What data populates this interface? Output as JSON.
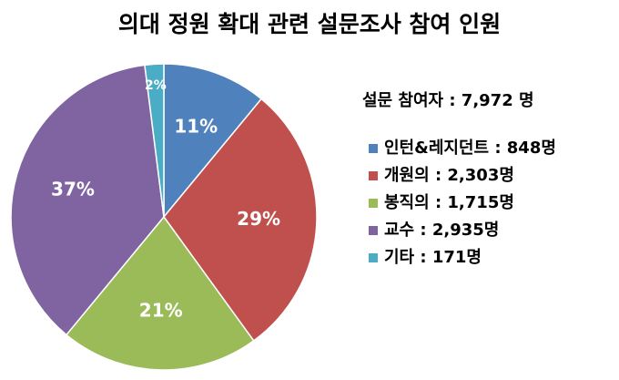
{
  "chart_data": {
    "type": "pie",
    "title": "의대 정원 확대 관련 설문조사 참여 인원",
    "subtitle": "설문 참여자 : 7,972 명",
    "categories": [
      "인턴&레지던트 : 848명",
      "개원의 : 2,303명",
      "봉직의 : 1,715명",
      "교수 : 2,935명",
      "기타 : 171명"
    ],
    "values": [
      11,
      29,
      21,
      37,
      2
    ],
    "value_labels": [
      "11%",
      "29%",
      "21%",
      "37%",
      "2%"
    ],
    "colors": [
      "#4f81bd",
      "#c0504d",
      "#9bbb59",
      "#8064a2",
      "#4bacc6"
    ],
    "legend": "right"
  }
}
